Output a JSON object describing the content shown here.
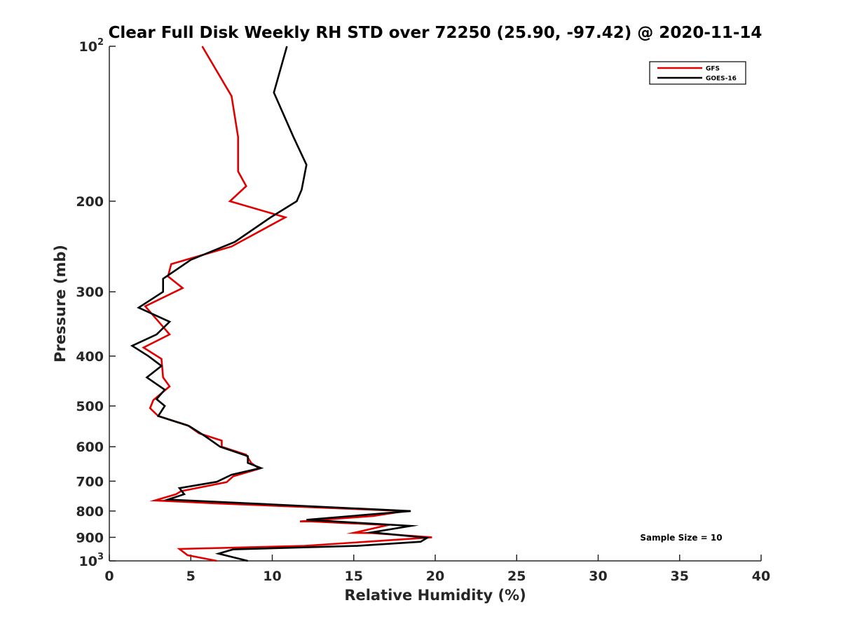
{
  "chart_data": {
    "type": "line",
    "title": "Clear Full Disk Weekly RH STD over 72250 (25.90, -97.42) @ 2020-11-14",
    "xlabel": "Relative Humidity (%)",
    "ylabel": "Pressure (mb)",
    "xlim": [
      0,
      40
    ],
    "ylim": [
      100,
      1000
    ],
    "y_scale": "log",
    "y_reversed": true,
    "grid": false,
    "legend_position": "top-right",
    "x_ticks": [
      0,
      5,
      10,
      15,
      20,
      25,
      30,
      35,
      40
    ],
    "x_tick_labels": [
      "0",
      "5",
      "10",
      "15",
      "20",
      "25",
      "30",
      "35",
      "40"
    ],
    "y_ticks": [
      100,
      200,
      300,
      400,
      500,
      600,
      700,
      800,
      900,
      1000
    ],
    "y_tick_labels": [
      {
        "base": "10",
        "exp": "2"
      },
      {
        "base": "200",
        "exp": ""
      },
      {
        "base": "300",
        "exp": ""
      },
      {
        "base": "400",
        "exp": ""
      },
      {
        "base": "500",
        "exp": ""
      },
      {
        "base": "600",
        "exp": ""
      },
      {
        "base": "700",
        "exp": ""
      },
      {
        "base": "800",
        "exp": ""
      },
      {
        "base": "900",
        "exp": ""
      },
      {
        "base": "10",
        "exp": "3"
      }
    ],
    "annotation": "Sample Size = 10",
    "series": [
      {
        "name": "GFS",
        "color": "#e00000",
        "points": [
          [
            5.7,
            100
          ],
          [
            7.5,
            125
          ],
          [
            7.9,
            150
          ],
          [
            7.9,
            175
          ],
          [
            8.4,
            187
          ],
          [
            7.4,
            200
          ],
          [
            10.8,
            215
          ],
          [
            7.5,
            245
          ],
          [
            3.8,
            265
          ],
          [
            3.6,
            280
          ],
          [
            4.5,
            295
          ],
          [
            2.2,
            320
          ],
          [
            3.1,
            345
          ],
          [
            3.7,
            363
          ],
          [
            2.1,
            385
          ],
          [
            3.2,
            405
          ],
          [
            3.3,
            440
          ],
          [
            3.7,
            458
          ],
          [
            2.7,
            487
          ],
          [
            2.5,
            505
          ],
          [
            3.0,
            523
          ],
          [
            4.8,
            545
          ],
          [
            5.5,
            565
          ],
          [
            6.9,
            584
          ],
          [
            6.9,
            600
          ],
          [
            8.4,
            622
          ],
          [
            8.7,
            645
          ],
          [
            9.2,
            662
          ],
          [
            7.6,
            685
          ],
          [
            7.2,
            703
          ],
          [
            4.4,
            732
          ],
          [
            4.1,
            742
          ],
          [
            2.8,
            763
          ],
          [
            6.5,
            773
          ],
          [
            18.2,
            800
          ],
          [
            16.2,
            818
          ],
          [
            11.7,
            838
          ],
          [
            12.4,
            838
          ],
          [
            17.1,
            852
          ],
          [
            15.0,
            882
          ],
          [
            16.1,
            883
          ],
          [
            19.8,
            900
          ],
          [
            12.0,
            935
          ],
          [
            4.3,
            948
          ],
          [
            4.8,
            975
          ],
          [
            6.6,
            1000
          ]
        ]
      },
      {
        "name": "GOES-16",
        "color": "#000000",
        "points": [
          [
            10.9,
            100
          ],
          [
            10.1,
            123
          ],
          [
            11.3,
            150
          ],
          [
            12.1,
            170
          ],
          [
            11.8,
            190
          ],
          [
            11.5,
            200
          ],
          [
            9.9,
            215
          ],
          [
            7.7,
            240
          ],
          [
            5.0,
            260
          ],
          [
            3.3,
            283
          ],
          [
            3.3,
            300
          ],
          [
            1.8,
            322
          ],
          [
            3.7,
            343
          ],
          [
            2.9,
            363
          ],
          [
            1.4,
            382
          ],
          [
            2.4,
            400
          ],
          [
            3.2,
            418
          ],
          [
            2.3,
            440
          ],
          [
            3.4,
            465
          ],
          [
            2.9,
            485
          ],
          [
            3.4,
            500
          ],
          [
            3.0,
            523
          ],
          [
            4.9,
            547
          ],
          [
            5.9,
            573
          ],
          [
            6.8,
            600
          ],
          [
            8.5,
            626
          ],
          [
            8.5,
            645
          ],
          [
            9.3,
            660
          ],
          [
            7.5,
            680
          ],
          [
            6.6,
            702
          ],
          [
            4.3,
            722
          ],
          [
            4.6,
            742
          ],
          [
            3.6,
            760
          ],
          [
            18.5,
            800
          ],
          [
            12.1,
            832
          ],
          [
            18.5,
            855
          ],
          [
            16.1,
            880
          ],
          [
            19.5,
            902
          ],
          [
            19.1,
            918
          ],
          [
            15.2,
            935
          ],
          [
            7.6,
            950
          ],
          [
            6.7,
            968
          ],
          [
            8.5,
            1000
          ]
        ]
      }
    ]
  }
}
